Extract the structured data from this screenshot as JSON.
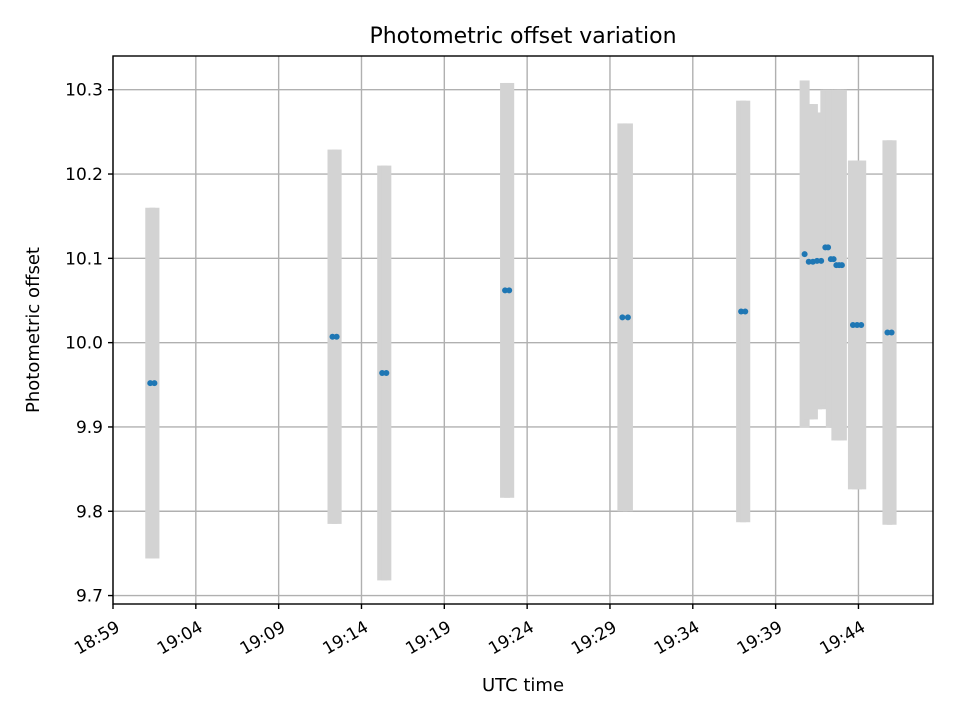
{
  "chart_data": {
    "type": "scatter",
    "title": "Photometric offset variation",
    "xlabel": "UTC time",
    "ylabel": "Photometric offset",
    "xlim": [
      "18:59:00",
      "19:48:30"
    ],
    "ylim": [
      9.69,
      10.34
    ],
    "grid": true,
    "x_ticks": [
      "18:59",
      "19:04",
      "19:09",
      "19:14",
      "19:19",
      "19:24",
      "19:29",
      "19:34",
      "19:39",
      "19:44"
    ],
    "y_ticks": [
      9.7,
      9.8,
      9.9,
      10.0,
      10.1,
      10.2,
      10.3
    ],
    "y_tick_labels": [
      "9.7",
      "9.8",
      "9.9",
      "10.0",
      "10.1",
      "10.2",
      "10.3"
    ],
    "colors": {
      "points": "#1f77b4",
      "error_bars": "#d3d3d3"
    },
    "points": [
      {
        "x": "19:01:15",
        "y": 9.952,
        "yerr": 0.208
      },
      {
        "x": "19:01:30",
        "y": 9.952,
        "yerr": 0.208
      },
      {
        "x": "19:12:15",
        "y": 10.007,
        "yerr": 0.222
      },
      {
        "x": "19:12:30",
        "y": 10.007,
        "yerr": 0.222
      },
      {
        "x": "19:15:15",
        "y": 9.964,
        "yerr": 0.246
      },
      {
        "x": "19:15:30",
        "y": 9.964,
        "yerr": 0.246
      },
      {
        "x": "19:22:40",
        "y": 10.062,
        "yerr": 0.246
      },
      {
        "x": "19:22:55",
        "y": 10.062,
        "yerr": 0.246
      },
      {
        "x": "19:29:45",
        "y": 10.03,
        "yerr": 0.23
      },
      {
        "x": "19:30:05",
        "y": 10.03,
        "yerr": 0.23
      },
      {
        "x": "19:36:55",
        "y": 10.037,
        "yerr": 0.25
      },
      {
        "x": "19:37:10",
        "y": 10.037,
        "yerr": 0.25
      },
      {
        "x": "19:40:45",
        "y": 10.105,
        "yerr": 0.206
      },
      {
        "x": "19:41:00",
        "y": 10.096,
        "yerr": 0.187
      },
      {
        "x": "19:41:15",
        "y": 10.096,
        "yerr": 0.187
      },
      {
        "x": "19:41:30",
        "y": 10.097,
        "yerr": 0.176
      },
      {
        "x": "19:41:45",
        "y": 10.097,
        "yerr": 0.176
      },
      {
        "x": "19:42:00",
        "y": 10.113,
        "yerr": 0.187
      },
      {
        "x": "19:42:10",
        "y": 10.113,
        "yerr": 0.187
      },
      {
        "x": "19:42:20",
        "y": 10.099,
        "yerr": 0.2
      },
      {
        "x": "19:42:30",
        "y": 10.099,
        "yerr": 0.2
      },
      {
        "x": "19:42:40",
        "y": 10.092,
        "yerr": 0.208
      },
      {
        "x": "19:42:50",
        "y": 10.092,
        "yerr": 0.208
      },
      {
        "x": "19:43:00",
        "y": 10.092,
        "yerr": 0.208
      },
      {
        "x": "19:43:40",
        "y": 10.021,
        "yerr": 0.195
      },
      {
        "x": "19:43:55",
        "y": 10.021,
        "yerr": 0.195
      },
      {
        "x": "19:44:10",
        "y": 10.021,
        "yerr": 0.195
      },
      {
        "x": "19:45:45",
        "y": 10.012,
        "yerr": 0.228
      },
      {
        "x": "19:46:00",
        "y": 10.012,
        "yerr": 0.228
      }
    ]
  }
}
